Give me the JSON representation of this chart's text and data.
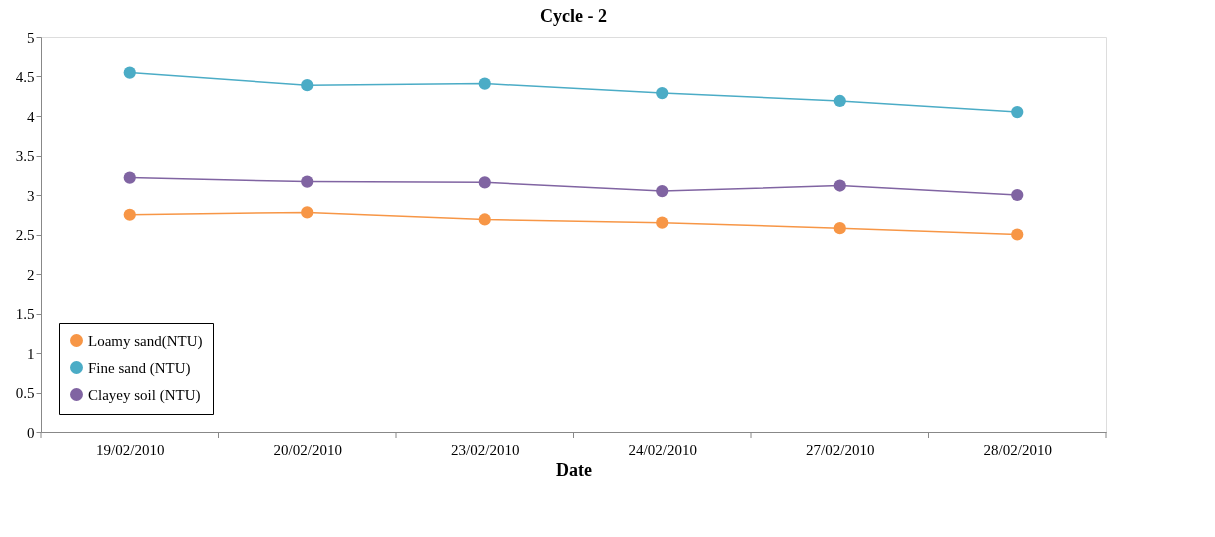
{
  "chart_data": {
    "type": "line",
    "title": "Cycle - 2",
    "xlabel": "Date",
    "categories": [
      "19/02/2010",
      "20/02/2010",
      "23/02/2010",
      "24/02/2010",
      "27/02/2010",
      "28/02/2010"
    ],
    "series": [
      {
        "name": "Loamy sand(NTU)",
        "color": "#f79646",
        "values": [
          2.75,
          2.78,
          2.69,
          2.65,
          2.58,
          2.5
        ]
      },
      {
        "name": "Fine sand (NTU)",
        "color": "#4bacc6",
        "values": [
          4.55,
          4.39,
          4.41,
          4.29,
          4.19,
          4.05
        ]
      },
      {
        "name": "Clayey soil (NTU)",
        "color": "#8064a2",
        "values": [
          3.22,
          3.17,
          3.16,
          3.05,
          3.12,
          3.0
        ]
      }
    ],
    "ylim": [
      0,
      5
    ],
    "yticks": [
      0,
      0.5,
      1,
      1.5,
      2,
      2.5,
      3,
      3.5,
      4,
      4.5,
      5
    ],
    "grid": false,
    "legend": "bottom left",
    "marker": "circle",
    "line_style": "solid"
  }
}
